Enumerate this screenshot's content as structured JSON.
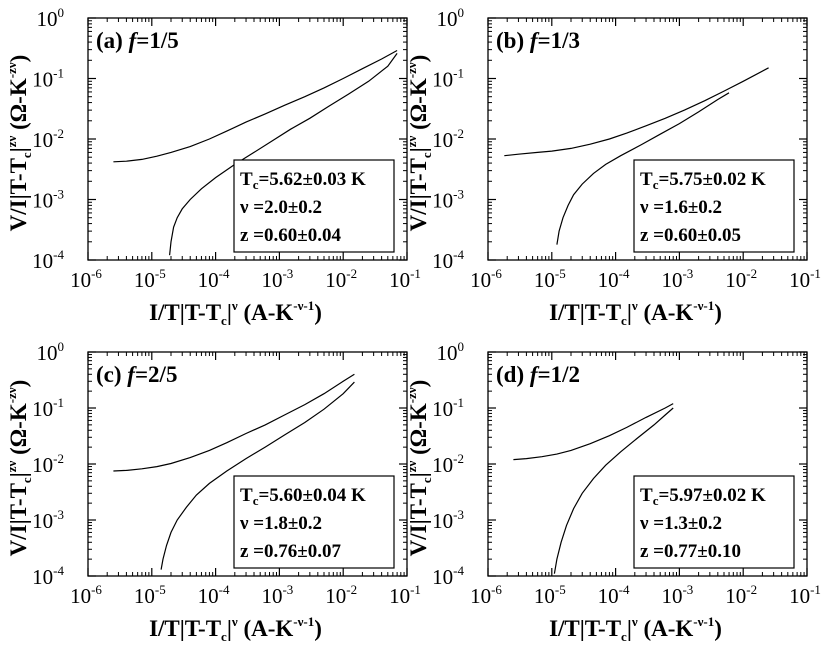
{
  "chart_data": [
    {
      "type": "line",
      "panel_label": "(a) ",
      "panel_f": "f",
      "panel_frac": "=1/5",
      "xscale": "log",
      "yscale": "log",
      "xlim": [
        1e-06,
        0.1
      ],
      "ylim": [
        0.0001,
        1
      ],
      "xticks": [
        {
          "value": 1e-06,
          "base": "10",
          "exp": "-6"
        },
        {
          "value": 1e-05,
          "base": "10",
          "exp": "-5"
        },
        {
          "value": 0.0001,
          "base": "10",
          "exp": "-4"
        },
        {
          "value": 0.001,
          "base": "10",
          "exp": "-3"
        },
        {
          "value": 0.01,
          "base": "10",
          "exp": "-2"
        },
        {
          "value": 0.1,
          "base": "10",
          "exp": "-1"
        }
      ],
      "yticks": [
        {
          "value": 0.0001,
          "base": "10",
          "exp": "-4"
        },
        {
          "value": 0.001,
          "base": "10",
          "exp": "-3"
        },
        {
          "value": 0.01,
          "base": "10",
          "exp": "-2"
        },
        {
          "value": 0.1,
          "base": "10",
          "exp": "-1"
        },
        {
          "value": 1,
          "base": "10",
          "exp": "0"
        }
      ],
      "params": {
        "tc": "=5.62±0.03 K",
        "nu": "ν =2.0±0.2",
        "z": "z =0.60±0.04"
      },
      "series": [
        {
          "x": [
            2.5e-06,
            4e-06,
            7e-06,
            1.2e-05,
            2e-05,
            4e-05,
            8e-05,
            0.00015,
            0.0003,
            0.0006,
            0.0012,
            0.0025,
            0.005,
            0.01,
            0.02,
            0.04,
            0.07
          ],
          "y": [
            0.0042,
            0.0043,
            0.0046,
            0.0052,
            0.006,
            0.0075,
            0.01,
            0.0135,
            0.019,
            0.026,
            0.036,
            0.05,
            0.07,
            0.1,
            0.145,
            0.21,
            0.29
          ]
        },
        {
          "x": [
            1.9e-05,
            2e-05,
            2.2e-05,
            2.5e-05,
            3e-05,
            4e-05,
            6e-05,
            0.0001,
            0.0002,
            0.0004,
            0.0008,
            0.0015,
            0.003,
            0.006,
            0.012,
            0.025,
            0.05,
            0.07
          ],
          "y": [
            0.00012,
            0.0002,
            0.00035,
            0.0005,
            0.0007,
            0.001,
            0.0015,
            0.0023,
            0.0038,
            0.006,
            0.0095,
            0.0145,
            0.022,
            0.035,
            0.055,
            0.09,
            0.16,
            0.26
          ]
        }
      ]
    },
    {
      "type": "line",
      "panel_label": "(b) ",
      "panel_f": "f",
      "panel_frac": "=1/3",
      "xscale": "log",
      "yscale": "log",
      "xlim": [
        1e-06,
        0.1
      ],
      "ylim": [
        0.0001,
        1
      ],
      "xticks": [
        {
          "value": 1e-06,
          "base": "10",
          "exp": "-6"
        },
        {
          "value": 1e-05,
          "base": "10",
          "exp": "-5"
        },
        {
          "value": 0.0001,
          "base": "10",
          "exp": "-4"
        },
        {
          "value": 0.001,
          "base": "10",
          "exp": "-3"
        },
        {
          "value": 0.01,
          "base": "10",
          "exp": "-2"
        },
        {
          "value": 0.1,
          "base": "10",
          "exp": "-1"
        }
      ],
      "yticks": [
        {
          "value": 0.0001,
          "base": "10",
          "exp": "-4"
        },
        {
          "value": 0.001,
          "base": "10",
          "exp": "-3"
        },
        {
          "value": 0.01,
          "base": "10",
          "exp": "-2"
        },
        {
          "value": 0.1,
          "base": "10",
          "exp": "-1"
        },
        {
          "value": 1,
          "base": "10",
          "exp": "0"
        }
      ],
      "params": {
        "tc": "=5.75±0.02 K",
        "nu": "ν =1.6±0.2",
        "z": "z =0.60±0.05"
      },
      "series": [
        {
          "x": [
            1.8e-06,
            3e-06,
            6e-06,
            1e-05,
            2e-05,
            4e-05,
            8e-05,
            0.00015,
            0.0003,
            0.0006,
            0.0012,
            0.0025,
            0.005,
            0.01,
            0.025
          ],
          "y": [
            0.0053,
            0.0056,
            0.006,
            0.0063,
            0.007,
            0.0082,
            0.01,
            0.0125,
            0.0165,
            0.022,
            0.03,
            0.043,
            0.062,
            0.09,
            0.15
          ]
        },
        {
          "x": [
            1.2e-05,
            1.3e-05,
            1.5e-05,
            1.8e-05,
            2.2e-05,
            3e-05,
            4.5e-05,
            7e-05,
            0.00012,
            0.00025,
            0.0005,
            0.001,
            0.002,
            0.004,
            0.006
          ],
          "y": [
            0.00018,
            0.0003,
            0.0005,
            0.0008,
            0.0012,
            0.0018,
            0.0027,
            0.0038,
            0.0053,
            0.008,
            0.012,
            0.018,
            0.028,
            0.045,
            0.058
          ]
        }
      ]
    },
    {
      "type": "line",
      "panel_label": "(c) ",
      "panel_f": "f",
      "panel_frac": "=2/5",
      "xscale": "log",
      "yscale": "log",
      "xlim": [
        1e-06,
        0.1
      ],
      "ylim": [
        0.0001,
        1
      ],
      "xticks": [
        {
          "value": 1e-06,
          "base": "10",
          "exp": "-6"
        },
        {
          "value": 1e-05,
          "base": "10",
          "exp": "-5"
        },
        {
          "value": 0.0001,
          "base": "10",
          "exp": "-4"
        },
        {
          "value": 0.001,
          "base": "10",
          "exp": "-3"
        },
        {
          "value": 0.01,
          "base": "10",
          "exp": "-2"
        },
        {
          "value": 0.1,
          "base": "10",
          "exp": "-1"
        }
      ],
      "yticks": [
        {
          "value": 0.0001,
          "base": "10",
          "exp": "-4"
        },
        {
          "value": 0.001,
          "base": "10",
          "exp": "-3"
        },
        {
          "value": 0.01,
          "base": "10",
          "exp": "-2"
        },
        {
          "value": 0.1,
          "base": "10",
          "exp": "-1"
        },
        {
          "value": 1,
          "base": "10",
          "exp": "0"
        }
      ],
      "params": {
        "tc": "=5.60±0.04 K",
        "nu": "ν =1.8±0.2",
        "z": "z =0.76±0.07"
      },
      "series": [
        {
          "x": [
            2.5e-06,
            4e-06,
            7e-06,
            1.2e-05,
            2e-05,
            4e-05,
            8e-05,
            0.00015,
            0.0003,
            0.0006,
            0.0012,
            0.0025,
            0.005,
            0.01,
            0.015
          ],
          "y": [
            0.0075,
            0.0077,
            0.0082,
            0.009,
            0.0102,
            0.013,
            0.0175,
            0.024,
            0.035,
            0.05,
            0.075,
            0.115,
            0.18,
            0.3,
            0.4
          ]
        },
        {
          "x": [
            1.4e-05,
            1.5e-05,
            1.7e-05,
            2e-05,
            2.5e-05,
            3.5e-05,
            5e-05,
            8e-05,
            0.00015,
            0.0003,
            0.0006,
            0.0012,
            0.0025,
            0.005,
            0.01,
            0.015
          ],
          "y": [
            0.00013,
            0.0002,
            0.00035,
            0.0006,
            0.001,
            0.0017,
            0.0028,
            0.0045,
            0.0075,
            0.0125,
            0.02,
            0.033,
            0.055,
            0.095,
            0.18,
            0.29
          ]
        }
      ]
    },
    {
      "type": "line",
      "panel_label": "(d) ",
      "panel_f": "f",
      "panel_frac": "=1/2",
      "xscale": "log",
      "yscale": "log",
      "xlim": [
        1e-06,
        0.1
      ],
      "ylim": [
        0.0001,
        1
      ],
      "xticks": [
        {
          "value": 1e-06,
          "base": "10",
          "exp": "-6"
        },
        {
          "value": 1e-05,
          "base": "10",
          "exp": "-5"
        },
        {
          "value": 0.0001,
          "base": "10",
          "exp": "-4"
        },
        {
          "value": 0.001,
          "base": "10",
          "exp": "-3"
        },
        {
          "value": 0.01,
          "base": "10",
          "exp": "-2"
        },
        {
          "value": 0.1,
          "base": "10",
          "exp": "-1"
        }
      ],
      "yticks": [
        {
          "value": 0.0001,
          "base": "10",
          "exp": "-4"
        },
        {
          "value": 0.001,
          "base": "10",
          "exp": "-3"
        },
        {
          "value": 0.01,
          "base": "10",
          "exp": "-2"
        },
        {
          "value": 0.1,
          "base": "10",
          "exp": "-1"
        },
        {
          "value": 1,
          "base": "10",
          "exp": "0"
        }
      ],
      "params": {
        "tc": "=5.97±0.02 K",
        "nu": "ν =1.3±0.2",
        "z": "z =0.77±0.10"
      },
      "series": [
        {
          "x": [
            2.5e-06,
            4e-06,
            7e-06,
            1.2e-05,
            2e-05,
            4e-05,
            8e-05,
            0.00015,
            0.0003,
            0.0006,
            0.0008
          ],
          "y": [
            0.012,
            0.0125,
            0.0135,
            0.015,
            0.0175,
            0.023,
            0.032,
            0.045,
            0.068,
            0.1,
            0.12
          ]
        },
        {
          "x": [
            1.1e-05,
            1.2e-05,
            1.4e-05,
            1.7e-05,
            2.2e-05,
            3e-05,
            4.5e-05,
            7e-05,
            0.00012,
            0.00022,
            0.0004,
            0.0006,
            0.0008
          ],
          "y": [
            0.00011,
            0.0002,
            0.0004,
            0.0008,
            0.0016,
            0.003,
            0.0055,
            0.0095,
            0.0165,
            0.029,
            0.05,
            0.075,
            0.1
          ]
        }
      ]
    }
  ],
  "axis_labels": {
    "x_main": "I/T|T-T",
    "x_sub": "c",
    "x_bar": "|",
    "x_sup": "ν",
    "x_units": " (A-K",
    "x_units_sup": "-ν-1",
    "x_units_end": ")",
    "y_main": "V/I|T-T",
    "y_sub": "c",
    "y_bar": "|",
    "y_sup": "zν",
    "y_units": " (Ω-K",
    "y_units_sup": "-zν",
    "y_units_end": ")",
    "tc_prefix": "T",
    "tc_sub": "c"
  }
}
